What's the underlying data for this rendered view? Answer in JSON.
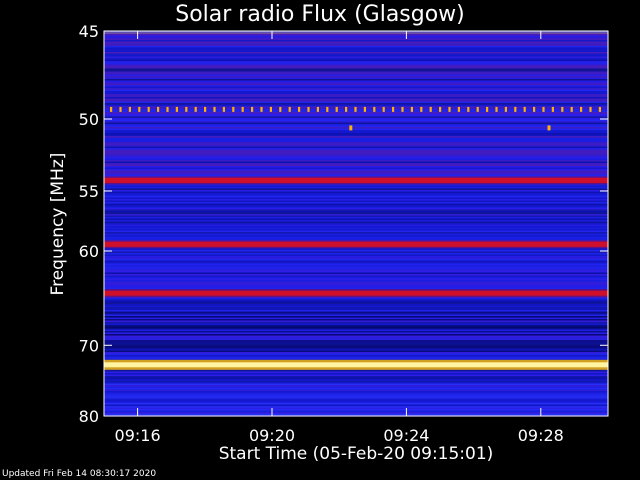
{
  "chart_data": {
    "type": "heatmap",
    "title": "Solar radio Flux (Glasgow)",
    "xlabel": "Start Time (05-Feb-20 09:15:01)",
    "ylabel": "Frequency [MHz]",
    "footer": "Updated Fri Feb 14 08:30:17 2020",
    "x_ticks": [
      "09:16",
      "09:20",
      "09:24",
      "09:28"
    ],
    "x_tick_minutes_after_0915": [
      1,
      5,
      9,
      13
    ],
    "x_range_minutes_after_0915": [
      0,
      15
    ],
    "y_ticks": [
      45,
      50,
      55,
      60,
      70,
      80
    ],
    "y_range_mhz": [
      45,
      80
    ],
    "y_scale": "reciprocal",
    "colormap": "blue-to-white (dark blue, blue, violet, red, yellow, white)",
    "features": [
      {
        "label": "bright line",
        "frequency_mhz": 72.5,
        "color": "#fff4a0"
      },
      {
        "label": "red band",
        "frequency_mhz": 54.2,
        "color": "#d0102a"
      },
      {
        "label": "red band",
        "frequency_mhz": 59.4,
        "color": "#d0102a"
      },
      {
        "label": "red band",
        "frequency_mhz": 64.1,
        "color": "#d0102a"
      },
      {
        "label": "dashed interference",
        "frequency_mhz": 49.4,
        "color": "#ffb000"
      }
    ]
  }
}
